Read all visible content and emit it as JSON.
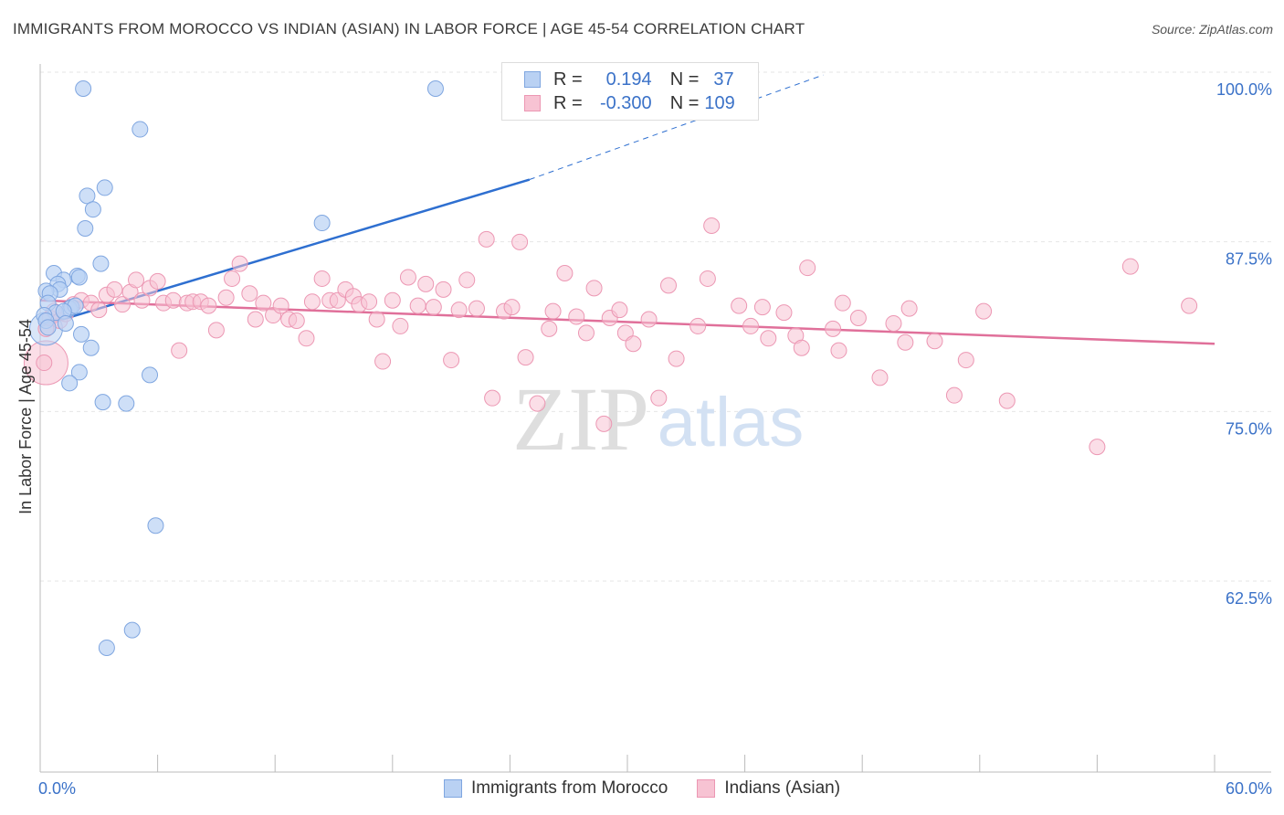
{
  "header": {
    "title": "IMMIGRANTS FROM MOROCCO VS INDIAN (ASIAN) IN LABOR FORCE | AGE 45-54 CORRELATION CHART",
    "source": "Source: ZipAtlas.com"
  },
  "legend": {
    "series1": {
      "r_label": "R =",
      "r_value": "0.194",
      "n_label": "N =",
      "n_value": "37"
    },
    "series2": {
      "r_label": "R =",
      "r_value": "-0.300",
      "n_label": "N =",
      "n_value": "109"
    }
  },
  "watermark": {
    "zip": "ZIP",
    "atlas": "atlas"
  },
  "colors": {
    "blue_fill": "#b9d1f3",
    "blue_stroke": "#7fa6e0",
    "blue_line": "#2e6fd0",
    "pink_fill": "#f7c3d3",
    "pink_stroke": "#ec97b3",
    "pink_line": "#e0709a",
    "axis_label": "#3b72c8",
    "grid": "#e6e6e6"
  },
  "chart_data": {
    "type": "scatter",
    "xlabel": "",
    "ylabel": "In Labor Force | Age 45-54",
    "xlim": [
      0,
      60
    ],
    "ylim": [
      50,
      101
    ],
    "x_tick_labels": [
      "0.0%",
      "60.0%"
    ],
    "y_ticks": [
      62.5,
      75.0,
      87.5,
      100.0
    ],
    "y_tick_labels": [
      "62.5%",
      "75.0%",
      "87.5%",
      "100.0%"
    ],
    "grid": true,
    "legend_position": "top-center",
    "series": [
      {
        "name": "Immigrants from Morocco",
        "color": "blue",
        "points": [
          [
            2.2,
            100.0
          ],
          [
            20.2,
            100.0
          ],
          [
            5.1,
            97.0
          ],
          [
            3.3,
            92.7
          ],
          [
            2.4,
            92.1
          ],
          [
            2.7,
            91.1
          ],
          [
            2.3,
            89.7
          ],
          [
            14.4,
            90.1
          ],
          [
            3.1,
            87.1
          ],
          [
            0.7,
            86.4
          ],
          [
            1.9,
            86.2
          ],
          [
            2.0,
            86.1
          ],
          [
            1.2,
            85.9
          ],
          [
            0.9,
            85.6
          ],
          [
            1.0,
            85.2
          ],
          [
            0.3,
            85.1
          ],
          [
            0.5,
            84.9
          ],
          [
            0.4,
            84.2
          ],
          [
            1.5,
            83.8
          ],
          [
            1.6,
            83.9
          ],
          [
            1.8,
            84.0
          ],
          [
            0.8,
            83.5
          ],
          [
            1.2,
            83.6
          ],
          [
            0.2,
            83.3
          ],
          [
            0.3,
            82.9
          ],
          [
            1.3,
            82.7
          ],
          [
            0.4,
            82.4
          ],
          [
            2.1,
            81.9
          ],
          [
            2.6,
            80.9
          ],
          [
            2.0,
            79.1
          ],
          [
            5.6,
            78.9
          ],
          [
            1.5,
            78.3
          ],
          [
            3.2,
            76.9
          ],
          [
            4.4,
            76.8
          ],
          [
            5.9,
            67.8
          ],
          [
            4.7,
            60.1
          ],
          [
            3.4,
            58.8
          ]
        ],
        "trend": {
          "x": [
            0,
            25
          ],
          "y": [
            82.5,
            93.3
          ],
          "dashed_to": [
            40,
            101.0
          ]
        }
      },
      {
        "name": "Indians (Asian)",
        "color": "pink",
        "points": [
          [
            0.2,
            79.8
          ],
          [
            0.3,
            82.3
          ],
          [
            0.5,
            83.1
          ],
          [
            0.7,
            83.6
          ],
          [
            1.0,
            82.9
          ],
          [
            1.3,
            83.4
          ],
          [
            1.7,
            84.1
          ],
          [
            2.1,
            84.4
          ],
          [
            2.6,
            84.2
          ],
          [
            3.0,
            83.7
          ],
          [
            3.4,
            84.8
          ],
          [
            3.8,
            85.2
          ],
          [
            4.2,
            84.1
          ],
          [
            4.6,
            85.0
          ],
          [
            4.9,
            85.9
          ],
          [
            5.2,
            84.4
          ],
          [
            5.6,
            85.3
          ],
          [
            6.0,
            85.8
          ],
          [
            6.3,
            84.2
          ],
          [
            6.8,
            84.4
          ],
          [
            7.1,
            80.7
          ],
          [
            7.5,
            84.2
          ],
          [
            7.8,
            84.3
          ],
          [
            8.2,
            84.3
          ],
          [
            8.6,
            84.0
          ],
          [
            9.0,
            82.2
          ],
          [
            9.5,
            84.6
          ],
          [
            9.8,
            86.0
          ],
          [
            10.2,
            87.1
          ],
          [
            10.7,
            84.9
          ],
          [
            11.0,
            83.0
          ],
          [
            11.4,
            84.2
          ],
          [
            11.9,
            83.3
          ],
          [
            12.3,
            84.0
          ],
          [
            12.7,
            83.0
          ],
          [
            13.1,
            82.9
          ],
          [
            13.6,
            81.6
          ],
          [
            13.9,
            84.3
          ],
          [
            14.4,
            86.0
          ],
          [
            14.8,
            84.4
          ],
          [
            15.2,
            84.4
          ],
          [
            15.6,
            85.2
          ],
          [
            16.0,
            84.7
          ],
          [
            16.3,
            84.1
          ],
          [
            16.8,
            84.3
          ],
          [
            17.2,
            83.0
          ],
          [
            17.5,
            79.9
          ],
          [
            18.0,
            84.4
          ],
          [
            18.4,
            82.5
          ],
          [
            18.8,
            86.1
          ],
          [
            19.3,
            84.0
          ],
          [
            19.7,
            85.6
          ],
          [
            20.1,
            83.9
          ],
          [
            20.6,
            85.2
          ],
          [
            21.0,
            80.0
          ],
          [
            21.4,
            83.7
          ],
          [
            21.8,
            85.9
          ],
          [
            22.3,
            83.8
          ],
          [
            22.8,
            88.9
          ],
          [
            23.1,
            77.2
          ],
          [
            23.7,
            83.6
          ],
          [
            24.1,
            83.9
          ],
          [
            24.5,
            88.7
          ],
          [
            24.8,
            80.2
          ],
          [
            25.4,
            76.8
          ],
          [
            26.0,
            82.3
          ],
          [
            26.2,
            83.6
          ],
          [
            26.8,
            86.4
          ],
          [
            27.4,
            83.2
          ],
          [
            27.9,
            82.0
          ],
          [
            28.3,
            85.3
          ],
          [
            28.8,
            75.3
          ],
          [
            29.1,
            83.1
          ],
          [
            29.6,
            83.7
          ],
          [
            29.9,
            82.0
          ],
          [
            30.3,
            81.2
          ],
          [
            31.1,
            83.0
          ],
          [
            31.6,
            77.2
          ],
          [
            32.1,
            85.5
          ],
          [
            32.5,
            80.1
          ],
          [
            33.6,
            82.5
          ],
          [
            34.1,
            86.0
          ],
          [
            34.3,
            89.9
          ],
          [
            35.7,
            84.0
          ],
          [
            36.3,
            82.5
          ],
          [
            36.9,
            83.9
          ],
          [
            37.2,
            81.6
          ],
          [
            38.0,
            83.5
          ],
          [
            38.6,
            81.8
          ],
          [
            38.9,
            80.9
          ],
          [
            39.2,
            86.8
          ],
          [
            40.5,
            82.3
          ],
          [
            40.8,
            80.7
          ],
          [
            41.0,
            84.2
          ],
          [
            41.8,
            83.1
          ],
          [
            42.9,
            78.7
          ],
          [
            43.6,
            82.7
          ],
          [
            44.2,
            81.3
          ],
          [
            44.4,
            83.8
          ],
          [
            45.7,
            81.4
          ],
          [
            46.7,
            77.4
          ],
          [
            47.3,
            80.0
          ],
          [
            48.2,
            83.6
          ],
          [
            49.4,
            77.0
          ],
          [
            54.0,
            73.6
          ],
          [
            55.7,
            86.9
          ],
          [
            58.7,
            84.0
          ]
        ],
        "trend": {
          "x": [
            0,
            60
          ],
          "y": [
            84.4,
            81.2
          ]
        }
      }
    ]
  },
  "bottom_legend": [
    {
      "label": "Immigrants from Morocco",
      "color": "blue"
    },
    {
      "label": "Indians (Asian)",
      "color": "pink"
    }
  ]
}
